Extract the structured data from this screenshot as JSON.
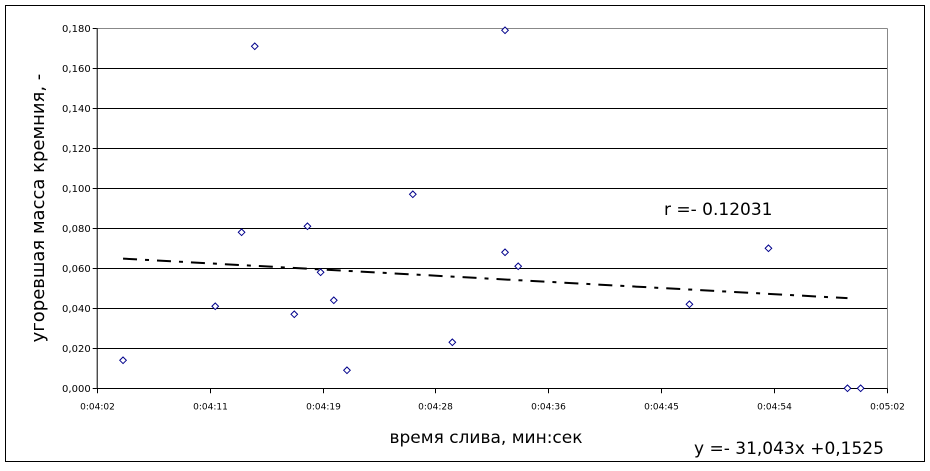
{
  "chart_data": {
    "type": "scatter",
    "title": "",
    "xlabel": "время слива, мин:сек",
    "ylabel": "угоревшая масса кремния, -",
    "xlim": [
      "0:04:02",
      "0:05:02"
    ],
    "ylim": [
      0,
      0.18
    ],
    "x_tick_labels": [
      "0:04:02",
      "0:04:11",
      "0:04:19",
      "0:04:28",
      "0:04:36",
      "0:04:45",
      "0:04:54",
      "0:05:02"
    ],
    "y_tick_labels": [
      "0,000",
      "0,020",
      "0,040",
      "0,060",
      "0,080",
      "0,100",
      "0,120",
      "0,140",
      "0,160",
      "0,180"
    ],
    "grid": "horizontal",
    "marker": "diamond",
    "marker_color": "#00008B",
    "points": [
      {
        "x": "0:04:04",
        "y": 0.014
      },
      {
        "x": "0:04:11",
        "y": 0.041
      },
      {
        "x": "0:04:13",
        "y": 0.078
      },
      {
        "x": "0:04:14",
        "y": 0.171
      },
      {
        "x": "0:04:17",
        "y": 0.037
      },
      {
        "x": "0:04:18",
        "y": 0.081
      },
      {
        "x": "0:04:19",
        "y": 0.058
      },
      {
        "x": "0:04:20",
        "y": 0.044
      },
      {
        "x": "0:04:21",
        "y": 0.009
      },
      {
        "x": "0:04:26",
        "y": 0.097
      },
      {
        "x": "0:04:29",
        "y": 0.023
      },
      {
        "x": "0:04:33",
        "y": 0.179
      },
      {
        "x": "0:04:33",
        "y": 0.068
      },
      {
        "x": "0:04:34",
        "y": 0.061
      },
      {
        "x": "0:04:47",
        "y": 0.042
      },
      {
        "x": "0:04:53",
        "y": 0.07
      },
      {
        "x": "0:04:59",
        "y": 0.0
      },
      {
        "x": "0:05:00",
        "y": 0.0
      }
    ],
    "trendline": {
      "type": "linear",
      "style": "dash-dot",
      "color": "#000000",
      "x_range": [
        "0:04:04",
        "0:04:59"
      ],
      "slope": -31.043,
      "intercept": 0.1525,
      "equation_label": "y =- 31,043x +0,1525",
      "r_label": "r =- 0.12031"
    }
  }
}
